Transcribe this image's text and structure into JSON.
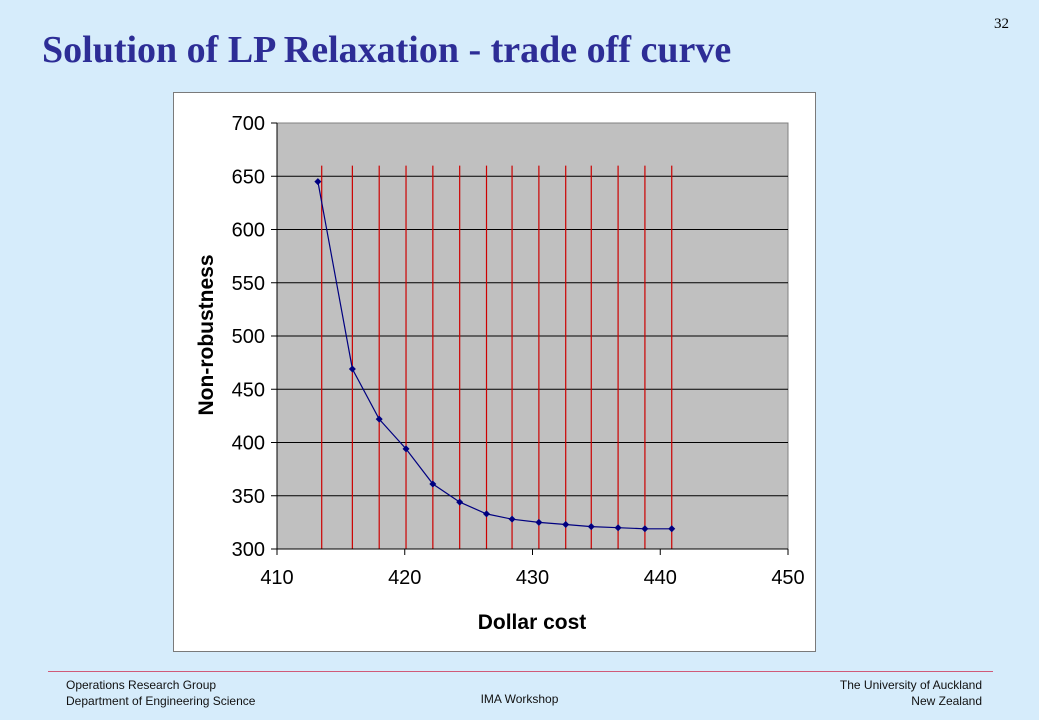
{
  "slide": {
    "number": "32",
    "title": "Solution of LP Relaxation - trade off curve"
  },
  "footer": {
    "left_line1": "Operations Research Group",
    "left_line2": "Department of Engineering Science",
    "center": "IMA Workshop",
    "right_line1": "The University of Auckland",
    "right_line2": "New Zealand"
  },
  "colors": {
    "background": "#d6ecfb",
    "title": "#2d2d96",
    "plot_area": "#c0c0c0",
    "series_line": "#000080",
    "vertical_lines": "#cc0000"
  },
  "chart_data": {
    "type": "scatter",
    "xlabel": "Dollar cost",
    "ylabel": "Non-robustness",
    "xlim": [
      410,
      450
    ],
    "ylim": [
      300,
      700
    ],
    "x_ticks": [
      "410",
      "420",
      "430",
      "440",
      "450"
    ],
    "y_ticks": [
      "300",
      "350",
      "400",
      "450",
      "500",
      "550",
      "600",
      "650",
      "700"
    ],
    "grid": "horizontal",
    "legend": "none",
    "series": [
      {
        "x": [
          413.2,
          415.9,
          418.0,
          420.1,
          422.2,
          424.3,
          426.4,
          428.4,
          430.5,
          432.6,
          434.6,
          436.7,
          438.8,
          440.9
        ],
        "y": [
          645,
          469,
          422,
          394,
          361,
          344,
          333,
          328,
          325,
          323,
          321,
          320,
          319,
          319
        ]
      }
    ],
    "vertical_lines_x": [
      413.5,
      415.9,
      418.0,
      420.1,
      422.2,
      424.3,
      426.4,
      428.4,
      430.5,
      432.6,
      434.6,
      436.7,
      438.8,
      440.9
    ],
    "vertical_lines_top": 660
  }
}
